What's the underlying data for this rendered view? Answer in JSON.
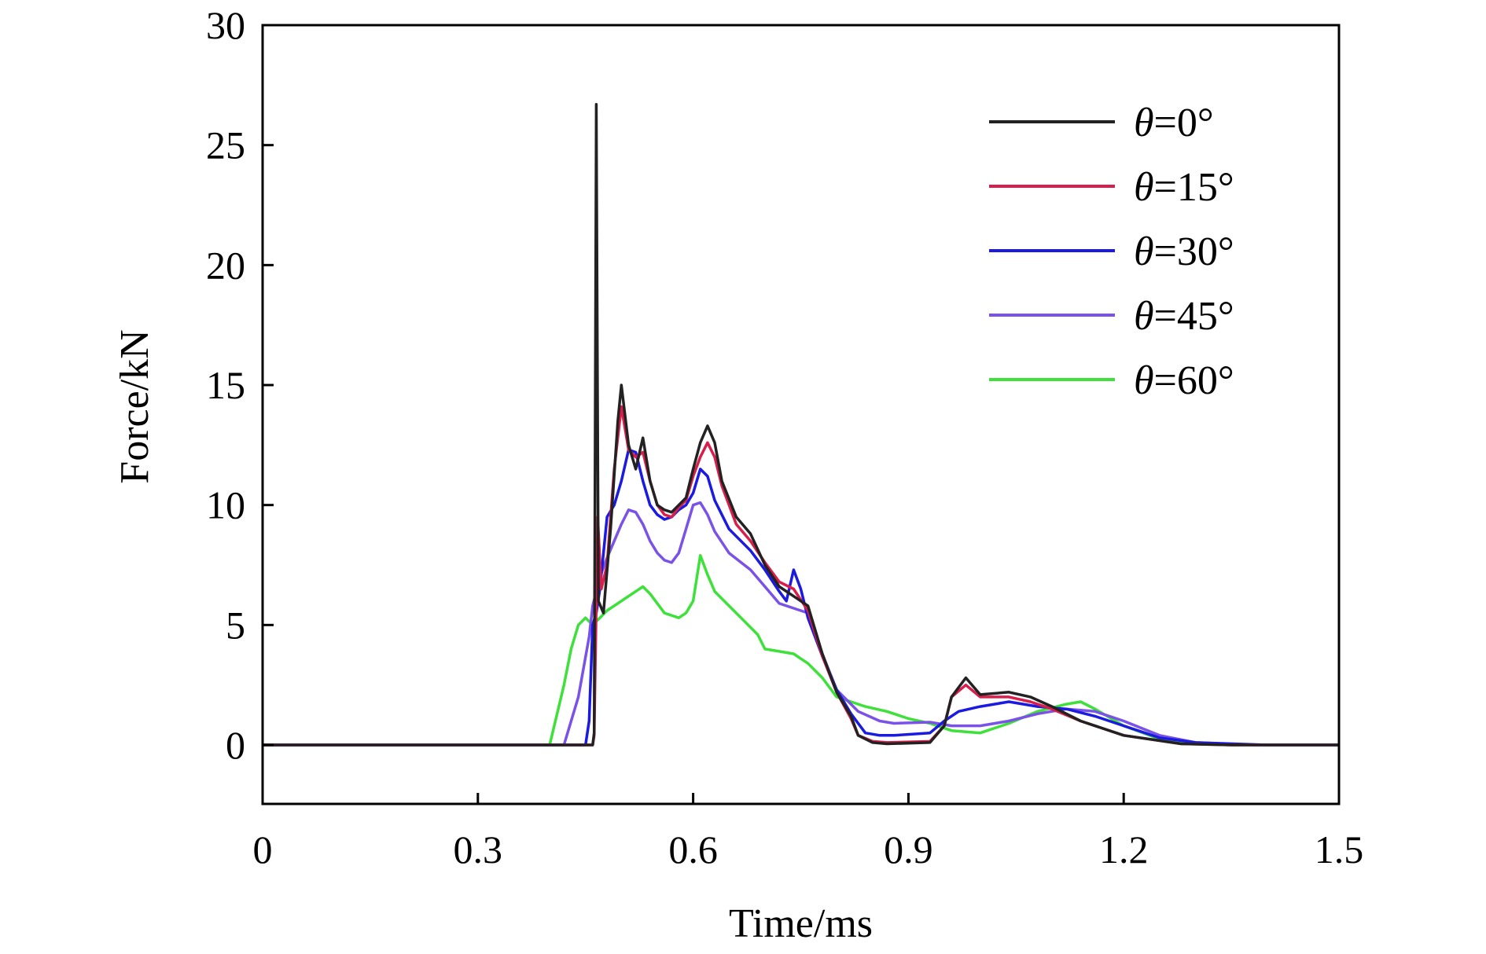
{
  "chart_data": {
    "type": "line",
    "title": "",
    "xlabel": "Time/ms",
    "ylabel": "Force/kN",
    "xlim": [
      0,
      1.5
    ],
    "ylim": [
      -2.5,
      30
    ],
    "xticks": [
      0,
      0.3,
      0.6,
      0.9,
      1.2,
      1.5
    ],
    "xtick_labels": [
      "0",
      "0.3",
      "0.6",
      "0.9",
      "1.2",
      "1.5"
    ],
    "yticks": [
      0,
      5,
      10,
      15,
      20,
      25,
      30
    ],
    "ytick_labels": [
      "0",
      "5",
      "10",
      "15",
      "20",
      "25",
      "30"
    ],
    "grid": false,
    "legend_position": "top-right",
    "series": [
      {
        "name": "θ=0°",
        "theta_symbol": "θ",
        "label_rest": "=0°",
        "color": "#222222",
        "points": [
          [
            0,
            0
          ],
          [
            0.46,
            0
          ],
          [
            0.462,
            0.5
          ],
          [
            0.465,
            26.7
          ],
          [
            0.468,
            6
          ],
          [
            0.475,
            5.5
          ],
          [
            0.485,
            9
          ],
          [
            0.495,
            13.5
          ],
          [
            0.5,
            15.0
          ],
          [
            0.51,
            12.5
          ],
          [
            0.52,
            11.5
          ],
          [
            0.53,
            12.8
          ],
          [
            0.54,
            11
          ],
          [
            0.55,
            10
          ],
          [
            0.56,
            9.8
          ],
          [
            0.57,
            9.7
          ],
          [
            0.58,
            10
          ],
          [
            0.59,
            10.3
          ],
          [
            0.6,
            11.5
          ],
          [
            0.61,
            12.6
          ],
          [
            0.62,
            13.3
          ],
          [
            0.63,
            12.6
          ],
          [
            0.64,
            11
          ],
          [
            0.66,
            9.5
          ],
          [
            0.68,
            8.8
          ],
          [
            0.7,
            7.5
          ],
          [
            0.72,
            6.6
          ],
          [
            0.74,
            6.2
          ],
          [
            0.76,
            5.8
          ],
          [
            0.78,
            3.8
          ],
          [
            0.8,
            2.2
          ],
          [
            0.82,
            1.2
          ],
          [
            0.83,
            0.4
          ],
          [
            0.85,
            0.1
          ],
          [
            0.87,
            0.05
          ],
          [
            0.93,
            0.1
          ],
          [
            0.95,
            0.8
          ],
          [
            0.96,
            2.0
          ],
          [
            0.98,
            2.8
          ],
          [
            1.0,
            2.1
          ],
          [
            1.04,
            2.2
          ],
          [
            1.07,
            2.0
          ],
          [
            1.1,
            1.6
          ],
          [
            1.14,
            1.0
          ],
          [
            1.2,
            0.4
          ],
          [
            1.28,
            0.05
          ],
          [
            1.35,
            0
          ],
          [
            1.5,
            0
          ]
        ]
      },
      {
        "name": "θ=15°",
        "theta_symbol": "θ",
        "label_rest": "=15°",
        "color": "#d81e4a",
        "points": [
          [
            0,
            0
          ],
          [
            0.46,
            0
          ],
          [
            0.462,
            0.4
          ],
          [
            0.467,
            9.5
          ],
          [
            0.472,
            6.5
          ],
          [
            0.48,
            7.5
          ],
          [
            0.49,
            11.5
          ],
          [
            0.5,
            14.1
          ],
          [
            0.51,
            12.3
          ],
          [
            0.52,
            12.0
          ],
          [
            0.53,
            12.2
          ],
          [
            0.54,
            11
          ],
          [
            0.55,
            10
          ],
          [
            0.56,
            9.6
          ],
          [
            0.57,
            9.5
          ],
          [
            0.58,
            9.9
          ],
          [
            0.59,
            10.2
          ],
          [
            0.6,
            11.2
          ],
          [
            0.61,
            12.0
          ],
          [
            0.62,
            12.6
          ],
          [
            0.63,
            12.0
          ],
          [
            0.64,
            10.8
          ],
          [
            0.66,
            9.2
          ],
          [
            0.68,
            8.5
          ],
          [
            0.7,
            7.6
          ],
          [
            0.72,
            6.8
          ],
          [
            0.74,
            6.5
          ],
          [
            0.76,
            5.6
          ],
          [
            0.78,
            3.7
          ],
          [
            0.8,
            2.2
          ],
          [
            0.82,
            1.1
          ],
          [
            0.83,
            0.4
          ],
          [
            0.85,
            0.15
          ],
          [
            0.87,
            0.1
          ],
          [
            0.93,
            0.15
          ],
          [
            0.95,
            0.8
          ],
          [
            0.96,
            2.0
          ],
          [
            0.98,
            2.5
          ],
          [
            1.0,
            2.0
          ],
          [
            1.04,
            2.0
          ],
          [
            1.07,
            1.8
          ],
          [
            1.1,
            1.5
          ],
          [
            1.14,
            1.0
          ],
          [
            1.2,
            0.4
          ],
          [
            1.28,
            0.05
          ],
          [
            1.35,
            0
          ],
          [
            1.5,
            0
          ]
        ]
      },
      {
        "name": "θ=30°",
        "theta_symbol": "θ",
        "label_rest": "=30°",
        "color": "#1a1ae0",
        "points": [
          [
            0,
            0
          ],
          [
            0.45,
            0
          ],
          [
            0.455,
            1
          ],
          [
            0.46,
            5
          ],
          [
            0.465,
            5.5
          ],
          [
            0.47,
            6.5
          ],
          [
            0.48,
            9.5
          ],
          [
            0.49,
            10
          ],
          [
            0.5,
            11
          ],
          [
            0.51,
            12.3
          ],
          [
            0.52,
            12.2
          ],
          [
            0.53,
            11
          ],
          [
            0.54,
            10
          ],
          [
            0.55,
            9.6
          ],
          [
            0.56,
            9.4
          ],
          [
            0.57,
            9.5
          ],
          [
            0.58,
            9.8
          ],
          [
            0.59,
            10
          ],
          [
            0.6,
            10.5
          ],
          [
            0.61,
            11.5
          ],
          [
            0.62,
            11.2
          ],
          [
            0.63,
            10.2
          ],
          [
            0.65,
            9
          ],
          [
            0.68,
            8.1
          ],
          [
            0.7,
            7.3
          ],
          [
            0.72,
            6.4
          ],
          [
            0.73,
            6.0
          ],
          [
            0.74,
            7.3
          ],
          [
            0.75,
            6.5
          ],
          [
            0.76,
            5.3
          ],
          [
            0.78,
            3.7
          ],
          [
            0.8,
            2.3
          ],
          [
            0.82,
            1.3
          ],
          [
            0.84,
            0.5
          ],
          [
            0.86,
            0.4
          ],
          [
            0.88,
            0.4
          ],
          [
            0.93,
            0.5
          ],
          [
            0.95,
            1.0
          ],
          [
            0.97,
            1.4
          ],
          [
            1.0,
            1.6
          ],
          [
            1.04,
            1.8
          ],
          [
            1.08,
            1.6
          ],
          [
            1.12,
            1.5
          ],
          [
            1.16,
            1.2
          ],
          [
            1.2,
            0.8
          ],
          [
            1.25,
            0.3
          ],
          [
            1.3,
            0.1
          ],
          [
            1.4,
            0
          ],
          [
            1.5,
            0
          ]
        ]
      },
      {
        "name": "θ=45°",
        "theta_symbol": "θ",
        "label_rest": "=45°",
        "color": "#7a52e8",
        "points": [
          [
            0,
            0
          ],
          [
            0.42,
            0
          ],
          [
            0.44,
            2
          ],
          [
            0.455,
            4.5
          ],
          [
            0.46,
            5.8
          ],
          [
            0.47,
            7
          ],
          [
            0.48,
            7.8
          ],
          [
            0.49,
            8.5
          ],
          [
            0.5,
            9.2
          ],
          [
            0.51,
            9.8
          ],
          [
            0.52,
            9.7
          ],
          [
            0.53,
            9.2
          ],
          [
            0.54,
            8.5
          ],
          [
            0.55,
            8
          ],
          [
            0.56,
            7.7
          ],
          [
            0.57,
            7.6
          ],
          [
            0.58,
            8
          ],
          [
            0.59,
            9
          ],
          [
            0.6,
            10
          ],
          [
            0.61,
            10.1
          ],
          [
            0.62,
            9.6
          ],
          [
            0.63,
            8.9
          ],
          [
            0.65,
            8.0
          ],
          [
            0.68,
            7.3
          ],
          [
            0.7,
            6.6
          ],
          [
            0.72,
            5.9
          ],
          [
            0.74,
            5.7
          ],
          [
            0.76,
            5.5
          ],
          [
            0.78,
            3.8
          ],
          [
            0.8,
            2.3
          ],
          [
            0.83,
            1.4
          ],
          [
            0.86,
            1.0
          ],
          [
            0.88,
            0.9
          ],
          [
            0.93,
            0.95
          ],
          [
            0.96,
            0.8
          ],
          [
            1.0,
            0.8
          ],
          [
            1.04,
            1.0
          ],
          [
            1.08,
            1.3
          ],
          [
            1.12,
            1.5
          ],
          [
            1.16,
            1.4
          ],
          [
            1.2,
            1.0
          ],
          [
            1.25,
            0.4
          ],
          [
            1.3,
            0.1
          ],
          [
            1.38,
            0
          ],
          [
            1.5,
            0
          ]
        ]
      },
      {
        "name": "θ=60°",
        "theta_symbol": "θ",
        "label_rest": "=60°",
        "color": "#3ee03a",
        "points": [
          [
            0,
            0
          ],
          [
            0.4,
            0
          ],
          [
            0.42,
            2.5
          ],
          [
            0.43,
            4
          ],
          [
            0.44,
            5
          ],
          [
            0.45,
            5.3
          ],
          [
            0.46,
            5
          ],
          [
            0.47,
            5.3
          ],
          [
            0.48,
            5.6
          ],
          [
            0.5,
            6.0
          ],
          [
            0.52,
            6.4
          ],
          [
            0.53,
            6.6
          ],
          [
            0.54,
            6.3
          ],
          [
            0.56,
            5.5
          ],
          [
            0.58,
            5.3
          ],
          [
            0.59,
            5.5
          ],
          [
            0.6,
            6
          ],
          [
            0.61,
            7.9
          ],
          [
            0.62,
            7.1
          ],
          [
            0.63,
            6.4
          ],
          [
            0.65,
            5.8
          ],
          [
            0.67,
            5.2
          ],
          [
            0.69,
            4.6
          ],
          [
            0.7,
            4.0
          ],
          [
            0.72,
            3.9
          ],
          [
            0.74,
            3.8
          ],
          [
            0.76,
            3.4
          ],
          [
            0.78,
            2.8
          ],
          [
            0.8,
            2.0
          ],
          [
            0.82,
            1.8
          ],
          [
            0.84,
            1.6
          ],
          [
            0.87,
            1.4
          ],
          [
            0.9,
            1.1
          ],
          [
            0.93,
            0.9
          ],
          [
            0.96,
            0.6
          ],
          [
            1.0,
            0.5
          ],
          [
            1.04,
            0.9
          ],
          [
            1.08,
            1.4
          ],
          [
            1.12,
            1.7
          ],
          [
            1.14,
            1.8
          ],
          [
            1.16,
            1.5
          ],
          [
            1.2,
            0.8
          ],
          [
            1.25,
            0.25
          ],
          [
            1.3,
            0.05
          ],
          [
            1.4,
            0
          ],
          [
            1.5,
            0
          ]
        ]
      }
    ]
  }
}
